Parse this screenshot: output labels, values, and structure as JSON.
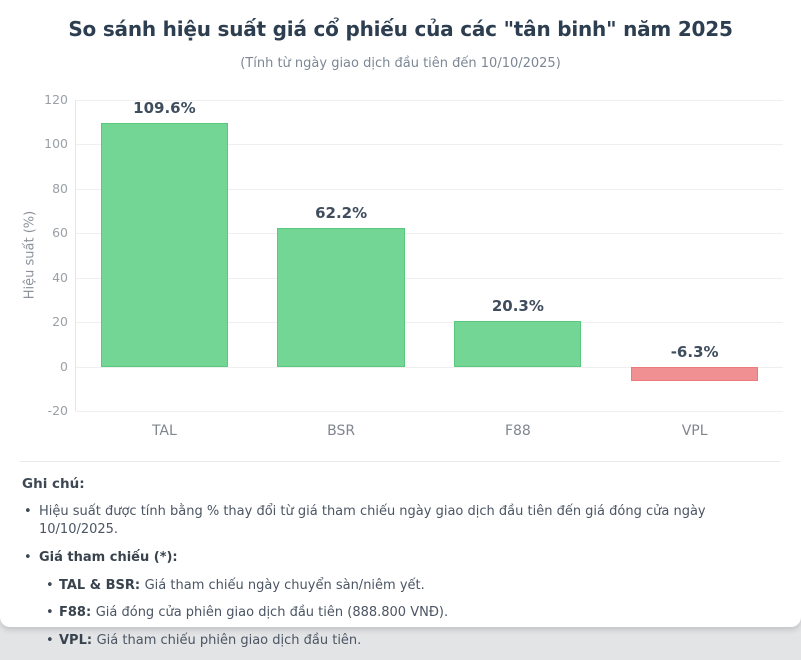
{
  "header": {
    "title": "So sánh hiệu suất giá cổ phiếu của các \"tân binh\" năm 2025",
    "subtitle": "(Tính từ ngày giao dịch đầu tiên đến 10/10/2025)"
  },
  "chart_data": {
    "type": "bar",
    "title": "So sánh hiệu suất giá cổ phiếu của các \"tân binh\" năm 2025",
    "subtitle": "(Tính từ ngày giao dịch đầu tiên đến 10/10/2025)",
    "categories": [
      "TAL",
      "BSR",
      "F88",
      "VPL"
    ],
    "values": [
      109.6,
      62.2,
      20.3,
      -6.3
    ],
    "value_labels": [
      "109.6%",
      "62.2%",
      "20.3%",
      "-6.3%"
    ],
    "xlabel": "",
    "ylabel": "Hiệu suất (%)",
    "ylim": [
      -20,
      120
    ],
    "yticks": [
      120,
      100,
      80,
      60,
      40,
      20,
      0,
      -20
    ],
    "grid": true,
    "legend_position": "none",
    "positive_color": "#74d694",
    "positive_border": "#57c87e",
    "negative_color": "#f09092",
    "negative_border": "#ec797c"
  },
  "notes": {
    "heading": "Ghi chú:",
    "bullet_glyph": "•",
    "items": [
      {
        "level": 1,
        "bold": "",
        "text": "Hiệu suất được tính bằng % thay đổi từ giá tham chiếu ngày giao dịch đầu tiên đến giá đóng cửa ngày 10/10/2025."
      },
      {
        "level": 1,
        "bold": "Giá tham chiếu (*):",
        "text": ""
      },
      {
        "level": 2,
        "bold": "TAL & BSR:",
        "text": "Giá tham chiếu ngày chuyển sàn/niêm yết."
      },
      {
        "level": 2,
        "bold": "F88:",
        "text": "Giá đóng cửa phiên giao dịch đầu tiên (888.800 VNĐ)."
      },
      {
        "level": 2,
        "bold": "VPL:",
        "text": "Giá tham chiếu phiên giao dịch đầu tiên."
      }
    ]
  }
}
